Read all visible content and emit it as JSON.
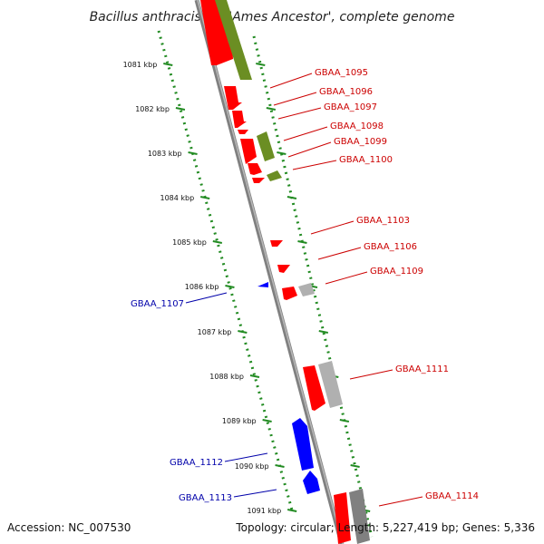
{
  "title": "Bacillus anthracis str. 'Ames Ancestor', complete genome",
  "accession": "Accession: NC_007530",
  "summary": "Topology: circular; Length: 5,227,419 bp; Genes: 5,336",
  "colors": {
    "cds_forward": "#ff0000",
    "cds_reverse": "#0000ff",
    "other_feature": "#6b8e23",
    "pseudo": "#b0b0b0",
    "backbone": "#808080",
    "tick": "#228b22",
    "label_forward": "#cc0000",
    "label_reverse": "#0000aa"
  },
  "ticks": [
    "1081 kbp",
    "1082 kbp",
    "1083 kbp",
    "1084 kbp",
    "1085 kbp",
    "1086 kbp",
    "1087 kbp",
    "1088 kbp",
    "1089 kbp",
    "1090 kbp",
    "1091 kbp"
  ],
  "gene_labels_forward": [
    "GBAA_1095",
    "GBAA_1096",
    "GBAA_1097",
    "GBAA_1098",
    "GBAA_1099",
    "GBAA_1100",
    "GBAA_1103",
    "GBAA_1106",
    "GBAA_1109",
    "GBAA_1111",
    "GBAA_1114"
  ],
  "gene_labels_reverse": [
    "GBAA_1107",
    "GBAA_1112",
    "GBAA_1113"
  ]
}
